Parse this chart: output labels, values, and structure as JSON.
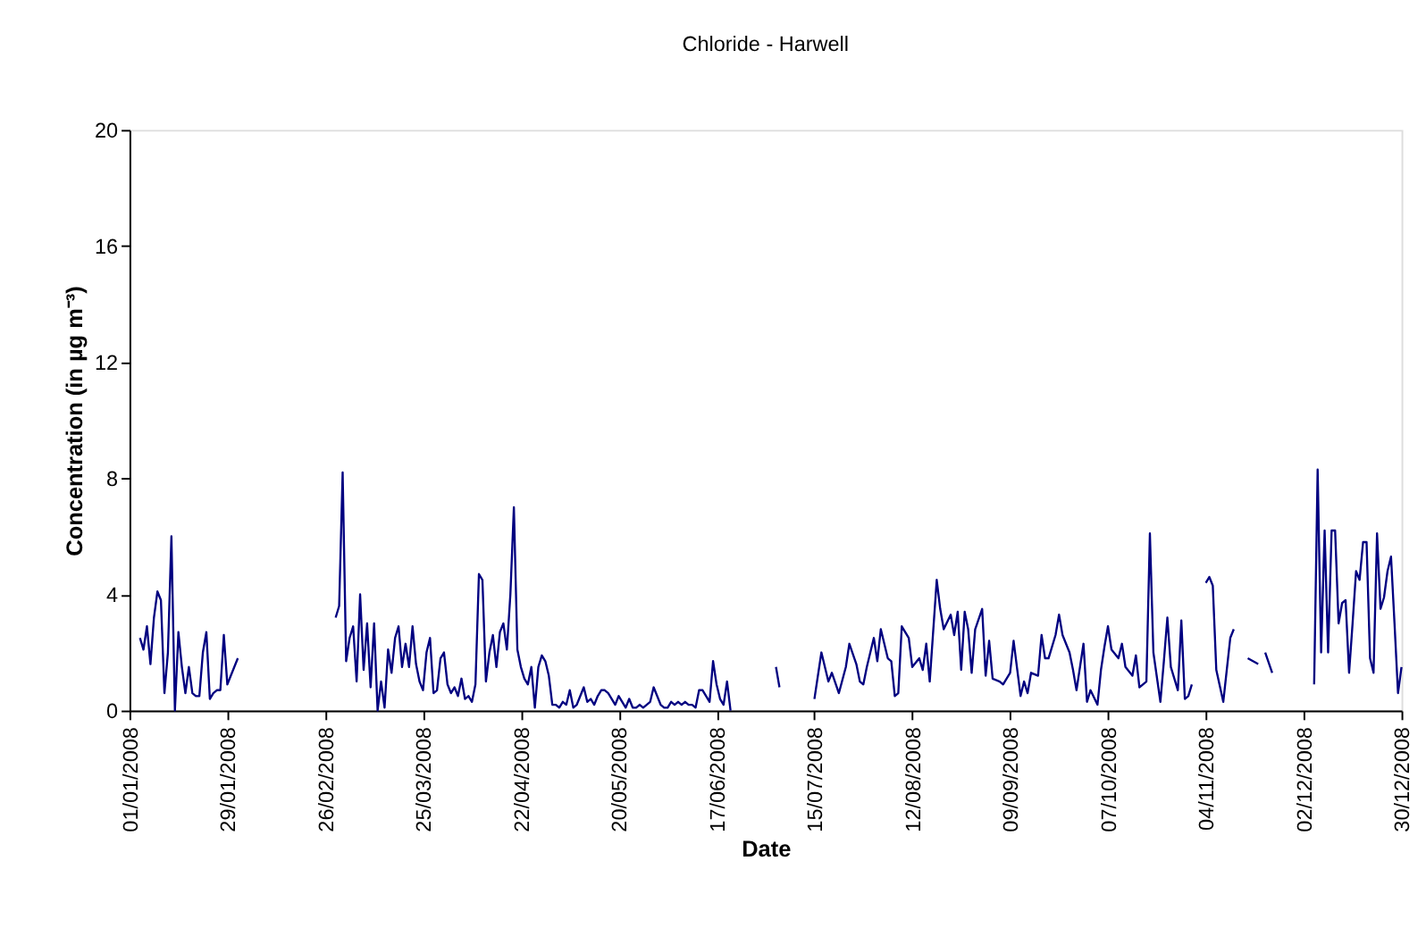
{
  "chart_data": {
    "type": "line",
    "title": "Chloride - Harwell",
    "xlabel": "Date",
    "ylabel": "Concentration (in  µg m⁻³)",
    "x": [
      "2008-01-04",
      "2008-01-05",
      "2008-01-06",
      "2008-01-07",
      "2008-01-08",
      "2008-01-09",
      "2008-01-10",
      "2008-01-11",
      "2008-01-12",
      "2008-01-13",
      "2008-01-14",
      "2008-01-15",
      "2008-01-16",
      "2008-01-17",
      "2008-01-18",
      "2008-01-19",
      "2008-01-20",
      "2008-01-21",
      "2008-01-22",
      "2008-01-23",
      "2008-01-24",
      "2008-01-25",
      "2008-01-26",
      "2008-01-27",
      "2008-01-28",
      "2008-01-29",
      "2008-01-30",
      "2008-01-31",
      "2008-02-01",
      "2008-02-15",
      "2008-02-29",
      "2008-03-01",
      "2008-03-02",
      "2008-03-03",
      "2008-03-04",
      "2008-03-05",
      "2008-03-06",
      "2008-03-07",
      "2008-03-08",
      "2008-03-09",
      "2008-03-10",
      "2008-03-11",
      "2008-03-12",
      "2008-03-13",
      "2008-03-14",
      "2008-03-15",
      "2008-03-16",
      "2008-03-17",
      "2008-03-18",
      "2008-03-19",
      "2008-03-20",
      "2008-03-21",
      "2008-03-22",
      "2008-03-23",
      "2008-03-24",
      "2008-03-25",
      "2008-03-26",
      "2008-03-27",
      "2008-03-28",
      "2008-03-29",
      "2008-03-30",
      "2008-03-31",
      "2008-04-01",
      "2008-04-02",
      "2008-04-03",
      "2008-04-04",
      "2008-04-05",
      "2008-04-06",
      "2008-04-07",
      "2008-04-08",
      "2008-04-09",
      "2008-04-10",
      "2008-04-11",
      "2008-04-12",
      "2008-04-13",
      "2008-04-14",
      "2008-04-15",
      "2008-04-16",
      "2008-04-17",
      "2008-04-18",
      "2008-04-19",
      "2008-04-20",
      "2008-04-21",
      "2008-04-22",
      "2008-04-23",
      "2008-04-24",
      "2008-04-25",
      "2008-04-26",
      "2008-04-27",
      "2008-04-28",
      "2008-04-29",
      "2008-04-30",
      "2008-05-01",
      "2008-05-02",
      "2008-05-03",
      "2008-05-04",
      "2008-05-05",
      "2008-05-06",
      "2008-05-07",
      "2008-05-08",
      "2008-05-09",
      "2008-05-10",
      "2008-05-11",
      "2008-05-12",
      "2008-05-13",
      "2008-05-14",
      "2008-05-15",
      "2008-05-16",
      "2008-05-17",
      "2008-05-18",
      "2008-05-19",
      "2008-05-20",
      "2008-05-21",
      "2008-05-22",
      "2008-05-23",
      "2008-05-24",
      "2008-05-25",
      "2008-05-26",
      "2008-05-27",
      "2008-05-28",
      "2008-05-29",
      "2008-05-30",
      "2008-05-31",
      "2008-06-01",
      "2008-06-02",
      "2008-06-03",
      "2008-06-04",
      "2008-06-05",
      "2008-06-06",
      "2008-06-07",
      "2008-06-08",
      "2008-06-09",
      "2008-06-10",
      "2008-06-11",
      "2008-06-12",
      "2008-06-13",
      "2008-06-14",
      "2008-06-15",
      "2008-06-16",
      "2008-06-17",
      "2008-06-18",
      "2008-06-19",
      "2008-06-20",
      "2008-06-21",
      "2008-06-28",
      "2008-07-04",
      "2008-07-05",
      "2008-07-10",
      "2008-07-15",
      "2008-07-17",
      "2008-07-19",
      "2008-07-20",
      "2008-07-22",
      "2008-07-24",
      "2008-07-25",
      "2008-07-27",
      "2008-07-28",
      "2008-07-29",
      "2008-07-30",
      "2008-08-01",
      "2008-08-02",
      "2008-08-03",
      "2008-08-05",
      "2008-08-06",
      "2008-08-07",
      "2008-08-08",
      "2008-08-09",
      "2008-08-11",
      "2008-08-12",
      "2008-08-14",
      "2008-08-15",
      "2008-08-16",
      "2008-08-17",
      "2008-08-19",
      "2008-08-20",
      "2008-08-21",
      "2008-08-23",
      "2008-08-24",
      "2008-08-25",
      "2008-08-26",
      "2008-08-27",
      "2008-08-28",
      "2008-08-29",
      "2008-08-30",
      "2008-09-01",
      "2008-09-02",
      "2008-09-03",
      "2008-09-04",
      "2008-09-06",
      "2008-09-07",
      "2008-09-09",
      "2008-09-10",
      "2008-09-12",
      "2008-09-13",
      "2008-09-14",
      "2008-09-15",
      "2008-09-17",
      "2008-09-18",
      "2008-09-19",
      "2008-09-20",
      "2008-09-22",
      "2008-09-23",
      "2008-09-24",
      "2008-09-26",
      "2008-09-27",
      "2008-09-28",
      "2008-09-30",
      "2008-10-01",
      "2008-10-02",
      "2008-10-04",
      "2008-10-05",
      "2008-10-06",
      "2008-10-07",
      "2008-10-08",
      "2008-10-10",
      "2008-10-11",
      "2008-10-12",
      "2008-10-14",
      "2008-10-15",
      "2008-10-16",
      "2008-10-18",
      "2008-10-19",
      "2008-10-20",
      "2008-10-22",
      "2008-10-23",
      "2008-10-24",
      "2008-10-25",
      "2008-10-27",
      "2008-10-28",
      "2008-10-29",
      "2008-10-30",
      "2008-10-31",
      "2008-11-02",
      "2008-11-04",
      "2008-11-05",
      "2008-11-06",
      "2008-11-07",
      "2008-11-09",
      "2008-11-11",
      "2008-11-12",
      "2008-11-15",
      "2008-11-16",
      "2008-11-19",
      "2008-11-20",
      "2008-11-21",
      "2008-11-23",
      "2008-11-28",
      "2008-12-05",
      "2008-12-06",
      "2008-12-07",
      "2008-12-08",
      "2008-12-09",
      "2008-12-10",
      "2008-12-11",
      "2008-12-12",
      "2008-12-13",
      "2008-12-14",
      "2008-12-15",
      "2008-12-16",
      "2008-12-17",
      "2008-12-18",
      "2008-12-19",
      "2008-12-20",
      "2008-12-21",
      "2008-12-22",
      "2008-12-23",
      "2008-12-24",
      "2008-12-25",
      "2008-12-26",
      "2008-12-27",
      "2008-12-28",
      "2008-12-29",
      "2008-12-30"
    ],
    "series": [
      {
        "color": "#000080",
        "values": [
          2.5,
          2.1,
          2.9,
          1.6,
          3.2,
          4.1,
          3.8,
          0.6,
          2.0,
          6.0,
          0.0,
          2.7,
          1.5,
          0.6,
          1.5,
          0.6,
          0.5,
          0.5,
          2.0,
          2.7,
          0.4,
          0.6,
          0.7,
          0.7,
          2.6,
          0.9,
          1.2,
          1.5,
          1.8,
          null,
          3.2,
          3.6,
          8.2,
          1.7,
          2.5,
          2.9,
          1.0,
          4.0,
          1.4,
          3.0,
          0.8,
          3.0,
          0.0,
          1.0,
          0.1,
          2.1,
          1.3,
          2.5,
          2.9,
          1.5,
          2.3,
          1.5,
          2.9,
          1.6,
          1.0,
          0.7,
          2.0,
          2.5,
          0.6,
          0.7,
          1.8,
          2.0,
          0.9,
          0.6,
          0.8,
          0.5,
          1.1,
          0.4,
          0.5,
          0.3,
          0.9,
          4.7,
          4.5,
          1.0,
          2.0,
          2.6,
          1.5,
          2.7,
          3.0,
          2.1,
          4.0,
          7.0,
          2.1,
          1.5,
          1.1,
          0.9,
          1.5,
          0.1,
          1.5,
          1.9,
          1.7,
          1.2,
          0.2,
          0.2,
          0.1,
          0.3,
          0.2,
          0.7,
          0.1,
          0.2,
          0.5,
          0.8,
          0.3,
          0.4,
          0.2,
          0.5,
          0.7,
          0.7,
          0.6,
          0.4,
          0.2,
          0.5,
          0.3,
          0.1,
          0.4,
          0.1,
          0.1,
          0.2,
          0.1,
          0.2,
          0.3,
          0.8,
          0.5,
          0.2,
          0.1,
          0.1,
          0.3,
          0.2,
          0.3,
          0.2,
          0.3,
          0.2,
          0.2,
          0.1,
          0.7,
          0.7,
          0.5,
          0.3,
          1.7,
          0.9,
          0.4,
          0.2,
          1.0,
          0.0,
          null,
          1.5,
          0.8,
          null,
          0.4,
          2.0,
          1.0,
          1.3,
          0.6,
          1.5,
          2.3,
          1.6,
          1.0,
          0.9,
          1.5,
          2.5,
          1.7,
          2.8,
          1.8,
          1.7,
          0.5,
          0.6,
          2.9,
          2.5,
          1.5,
          1.8,
          1.4,
          2.3,
          1.0,
          4.5,
          3.5,
          2.8,
          3.3,
          2.6,
          3.4,
          1.4,
          3.4,
          2.8,
          1.3,
          2.8,
          3.5,
          1.2,
          2.4,
          1.1,
          1.0,
          0.9,
          1.3,
          2.4,
          0.5,
          1.0,
          0.6,
          1.3,
          1.2,
          2.6,
          1.8,
          1.8,
          2.6,
          3.3,
          2.6,
          2.0,
          1.4,
          0.7,
          2.3,
          0.3,
          0.7,
          0.2,
          1.4,
          2.2,
          2.9,
          2.1,
          1.8,
          2.3,
          1.5,
          1.2,
          1.9,
          0.8,
          1.0,
          6.1,
          2.0,
          0.3,
          1.7,
          3.2,
          1.5,
          0.7,
          3.1,
          0.4,
          0.5,
          0.9,
          null,
          4.4,
          4.6,
          4.3,
          1.4,
          0.3,
          2.5,
          2.8,
          null,
          1.8,
          1.6,
          null,
          2.0,
          1.3,
          null,
          0.9,
          8.3,
          2.0,
          6.2,
          2.0,
          6.2,
          6.2,
          3.0,
          3.7,
          3.8,
          1.3,
          3.0,
          4.8,
          4.5,
          5.8,
          5.8,
          1.8,
          1.3,
          6.1,
          3.5,
          3.9,
          4.8,
          5.3,
          3.0,
          0.6,
          1.5
        ]
      }
    ],
    "xlim": [
      "2008-01-01",
      "2008-12-30"
    ],
    "xticks": [
      {
        "value": "2008-01-01",
        "label": "01/01/2008"
      },
      {
        "value": "2008-01-29",
        "label": "29/01/2008"
      },
      {
        "value": "2008-02-26",
        "label": "26/02/2008"
      },
      {
        "value": "2008-03-25",
        "label": "25/03/2008"
      },
      {
        "value": "2008-04-22",
        "label": "22/04/2008"
      },
      {
        "value": "2008-05-20",
        "label": "20/05/2008"
      },
      {
        "value": "2008-06-17",
        "label": "17/06/2008"
      },
      {
        "value": "2008-07-15",
        "label": "15/07/2008"
      },
      {
        "value": "2008-08-12",
        "label": "12/08/2008"
      },
      {
        "value": "2008-09-09",
        "label": "09/09/2008"
      },
      {
        "value": "2008-10-07",
        "label": "07/10/2008"
      },
      {
        "value": "2008-11-04",
        "label": "04/11/2008"
      },
      {
        "value": "2008-12-02",
        "label": "02/12/2008"
      },
      {
        "value": "2008-12-30",
        "label": "30/12/2008"
      }
    ],
    "ylim": [
      0,
      20
    ],
    "yticks": [
      0,
      4,
      8,
      12,
      16,
      20
    ],
    "grid": false,
    "legend": false,
    "marker": "none",
    "line_style": "solid"
  }
}
